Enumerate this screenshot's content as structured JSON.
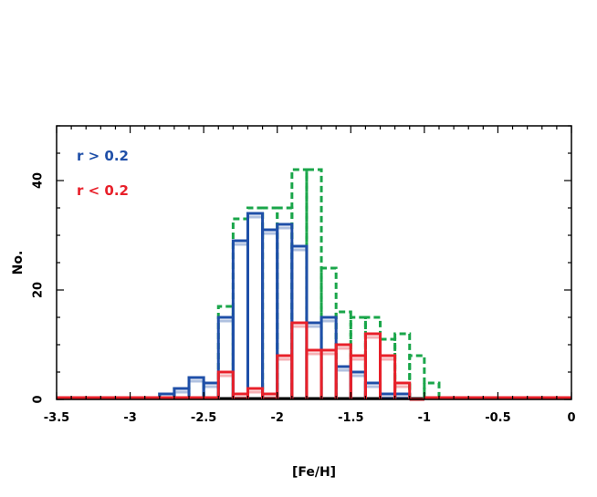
{
  "chart_data": {
    "type": "histogram-step",
    "xlabel": "[Fe/H]",
    "ylabel": "No.",
    "xlim": [
      -3.5,
      0
    ],
    "ylim": [
      0,
      50
    ],
    "x_ticks": [
      "-3.5",
      "-3",
      "-2.5",
      "-2",
      "-1.5",
      "-1",
      "-0.5",
      "0"
    ],
    "y_ticks": [
      "0",
      "20",
      "40"
    ],
    "bin_width": 0.1,
    "legend": {
      "placement": "top-left",
      "entries": [
        {
          "label": "r > 0.2",
          "color": "#1f4fa8"
        },
        {
          "label": "r < 0.2",
          "color": "#e8202a"
        }
      ]
    },
    "series": [
      {
        "style": "dashed",
        "color": "#1aa64a",
        "bins": [
          {
            "x0": -2.8,
            "x1": -2.7,
            "y": 1
          },
          {
            "x0": -2.7,
            "x1": -2.6,
            "y": 2
          },
          {
            "x0": -2.6,
            "x1": -2.5,
            "y": 4
          },
          {
            "x0": -2.5,
            "x1": -2.4,
            "y": 3
          },
          {
            "x0": -2.4,
            "x1": -2.3,
            "y": 17
          },
          {
            "x0": -2.3,
            "x1": -2.2,
            "y": 33
          },
          {
            "x0": -2.2,
            "x1": -2.1,
            "y": 35
          },
          {
            "x0": -2.1,
            "x1": -2.0,
            "y": 35
          },
          {
            "x0": -2.0,
            "x1": -1.9,
            "y": 35
          },
          {
            "x0": -1.9,
            "x1": -1.8,
            "y": 42
          },
          {
            "x0": -1.8,
            "x1": -1.7,
            "y": 42
          },
          {
            "x0": -1.7,
            "x1": -1.6,
            "y": 24
          },
          {
            "x0": -1.6,
            "x1": -1.5,
            "y": 16
          },
          {
            "x0": -1.5,
            "x1": -1.4,
            "y": 15
          },
          {
            "x0": -1.4,
            "x1": -1.3,
            "y": 15
          },
          {
            "x0": -1.3,
            "x1": -1.2,
            "y": 11
          },
          {
            "x0": -1.2,
            "x1": -1.1,
            "y": 12
          },
          {
            "x0": -1.1,
            "x1": -1.0,
            "y": 8
          },
          {
            "x0": -1.0,
            "x1": -0.9,
            "y": 3
          }
        ]
      },
      {
        "name": "r > 0.2",
        "style": "solid",
        "color": "#1f4fa8",
        "bins": [
          {
            "x0": -2.8,
            "x1": -2.7,
            "y": 1
          },
          {
            "x0": -2.7,
            "x1": -2.6,
            "y": 2
          },
          {
            "x0": -2.6,
            "x1": -2.5,
            "y": 4
          },
          {
            "x0": -2.5,
            "x1": -2.4,
            "y": 3
          },
          {
            "x0": -2.4,
            "x1": -2.3,
            "y": 15
          },
          {
            "x0": -2.3,
            "x1": -2.2,
            "y": 29
          },
          {
            "x0": -2.2,
            "x1": -2.1,
            "y": 34
          },
          {
            "x0": -2.1,
            "x1": -2.0,
            "y": 31
          },
          {
            "x0": -2.0,
            "x1": -1.9,
            "y": 32
          },
          {
            "x0": -1.9,
            "x1": -1.8,
            "y": 28
          },
          {
            "x0": -1.8,
            "x1": -1.7,
            "y": 14
          },
          {
            "x0": -1.7,
            "x1": -1.6,
            "y": 15
          },
          {
            "x0": -1.6,
            "x1": -1.5,
            "y": 6
          },
          {
            "x0": -1.5,
            "x1": -1.4,
            "y": 5
          },
          {
            "x0": -1.4,
            "x1": -1.3,
            "y": 3
          },
          {
            "x0": -1.3,
            "x1": -1.2,
            "y": 1
          },
          {
            "x0": -1.2,
            "x1": -1.1,
            "y": 1
          },
          {
            "x0": -1.1,
            "x1": -1.0,
            "y": 0
          }
        ]
      },
      {
        "name": "r < 0.2",
        "style": "solid",
        "color": "#e8202a",
        "bins": [
          {
            "x0": -2.4,
            "x1": -2.3,
            "y": 5
          },
          {
            "x0": -2.3,
            "x1": -2.2,
            "y": 1
          },
          {
            "x0": -2.2,
            "x1": -2.1,
            "y": 2
          },
          {
            "x0": -2.1,
            "x1": -2.0,
            "y": 1
          },
          {
            "x0": -2.0,
            "x1": -1.9,
            "y": 8
          },
          {
            "x0": -1.9,
            "x1": -1.8,
            "y": 14
          },
          {
            "x0": -1.8,
            "x1": -1.7,
            "y": 9
          },
          {
            "x0": -1.7,
            "x1": -1.6,
            "y": 9
          },
          {
            "x0": -1.6,
            "x1": -1.5,
            "y": 10
          },
          {
            "x0": -1.5,
            "x1": -1.4,
            "y": 8
          },
          {
            "x0": -1.4,
            "x1": -1.3,
            "y": 12
          },
          {
            "x0": -1.3,
            "x1": -1.2,
            "y": 8
          },
          {
            "x0": -1.2,
            "x1": -1.1,
            "y": 3
          },
          {
            "x0": -1.1,
            "x1": -1.0,
            "y": 0
          }
        ]
      }
    ]
  }
}
